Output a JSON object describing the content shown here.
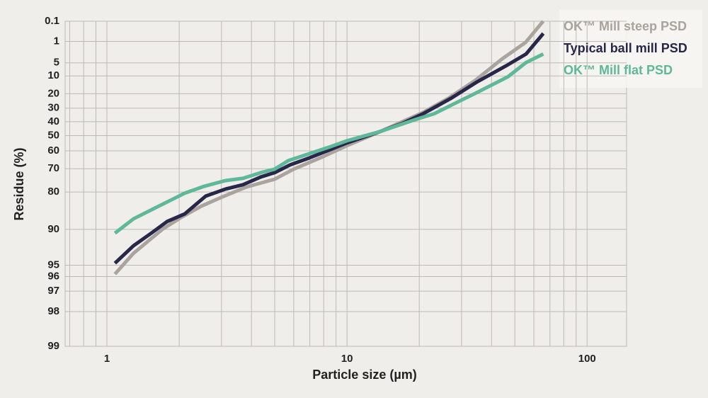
{
  "chart_data": {
    "type": "line",
    "x_label": "Particle size (µm)",
    "y_label": "Residue (%)",
    "x_scale": "log",
    "y_scale": "rosin-rammler",
    "xlim": [
      0.67,
      146
    ],
    "xticks": [
      1,
      10,
      100
    ],
    "xgrid_minor": [
      0.7,
      0.8,
      0.9,
      2,
      3,
      4,
      5,
      6,
      7,
      8,
      9,
      20,
      30,
      40,
      50,
      60,
      70,
      80,
      90
    ],
    "ylim": [
      0.1,
      99
    ],
    "yticks": [
      0.1,
      1,
      5,
      10,
      20,
      30,
      40,
      50,
      60,
      70,
      80,
      90,
      95,
      96,
      97,
      98,
      99
    ],
    "grid": true,
    "legend": "top-right",
    "series": [
      {
        "name": "OK™ Mill steep PSD",
        "color": "#aaa39e",
        "x": [
          1.08,
          1.29,
          1.7,
          2.06,
          2.48,
          2.98,
          3.82,
          5,
          6,
          8,
          10,
          13.8,
          20.8,
          26.5,
          34.3,
          44.3,
          55.4,
          65.6
        ],
        "values": [
          95.8,
          93.7,
          90.0,
          87.3,
          84.5,
          81.9,
          78.1,
          74.9,
          70.2,
          63.3,
          56.7,
          47.0,
          33.0,
          22.9,
          12.1,
          3.9,
          1.1,
          0.1
        ]
      },
      {
        "name": "Typical ball mill PSD",
        "color": "#27274a",
        "x": [
          1.08,
          1.29,
          1.53,
          1.78,
          2.11,
          2.58,
          3.12,
          3.69,
          4.38,
          5,
          5.8,
          7,
          8.6,
          10,
          13.8,
          16.9,
          20.8,
          27.2,
          34.9,
          46.8,
          55.7,
          65.7
        ],
        "values": [
          94.8,
          92.7,
          90.7,
          88.4,
          86.6,
          81.4,
          78.9,
          77.2,
          73.9,
          71.9,
          68.0,
          64.1,
          59.0,
          54.9,
          47.0,
          41.4,
          34.0,
          22.9,
          12.9,
          5.6,
          2.8,
          0.45
        ]
      },
      {
        "name": "OK™ Mill flat PSD",
        "color": "#5fb89a",
        "x": [
          1.08,
          1.29,
          1.58,
          2.11,
          2.55,
          3.12,
          3.69,
          4.38,
          5,
          5.7,
          7,
          8.6,
          10,
          13.8,
          19.4,
          23.1,
          27.2,
          34.9,
          46.8,
          55.7,
          65.7
        ],
        "values": [
          90.7,
          87.8,
          85.1,
          80.4,
          77.8,
          75.5,
          74.5,
          71.9,
          70.2,
          65.7,
          61.6,
          57.2,
          53.5,
          47.0,
          38.2,
          34.0,
          27.8,
          19.1,
          10.4,
          4.9,
          2.8
        ]
      }
    ]
  }
}
